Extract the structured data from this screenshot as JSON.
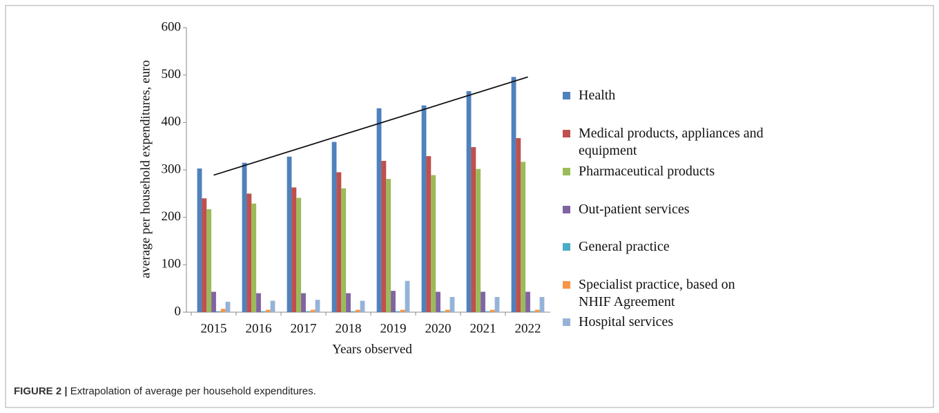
{
  "chart_data": {
    "type": "bar",
    "y_axis_label": "average per household expenditures, euro",
    "x_axis_label": "Years observed",
    "categories": [
      "2015",
      "2016",
      "2017",
      "2018",
      "2019",
      "2020",
      "2021",
      "2022"
    ],
    "series": [
      {
        "name": "Health",
        "color": "#4f81bd",
        "values": [
          303,
          315,
          328,
          359,
          430,
          436,
          466,
          496
        ]
      },
      {
        "name": "Medical products, appliances and\nequipment",
        "color": "#c0504d",
        "values": [
          240,
          250,
          263,
          295,
          319,
          329,
          348,
          367
        ]
      },
      {
        "name": "Pharmaceutical products",
        "color": "#9bbb59",
        "values": [
          217,
          229,
          241,
          261,
          281,
          289,
          302,
          317
        ]
      },
      {
        "name": "Out-patient services",
        "color": "#8064a2",
        "values": [
          43,
          40,
          40,
          40,
          45,
          43,
          43,
          43
        ]
      },
      {
        "name": "General practice",
        "color": "#4bacc6",
        "values": [
          2,
          2,
          2,
          2,
          2,
          2,
          2,
          2
        ]
      },
      {
        "name": "Specialist practice, based on\nNHIF Agreement",
        "color": "#f79646",
        "values": [
          7,
          5,
          5,
          5,
          5,
          5,
          5,
          5
        ]
      },
      {
        "name": " Hospital services",
        "color": "#95b3d7",
        "values": [
          22,
          24,
          26,
          24,
          66,
          32,
          32,
          32
        ]
      }
    ],
    "trendline": [
      289,
      496
    ],
    "ylim": [
      0,
      600
    ],
    "yticks": [
      0,
      100,
      200,
      300,
      400,
      500,
      600
    ],
    "grid": false,
    "legend": "right"
  },
  "caption": {
    "label": "FIGURE 2 |",
    "text": "Extrapolation of average per household expenditures."
  }
}
